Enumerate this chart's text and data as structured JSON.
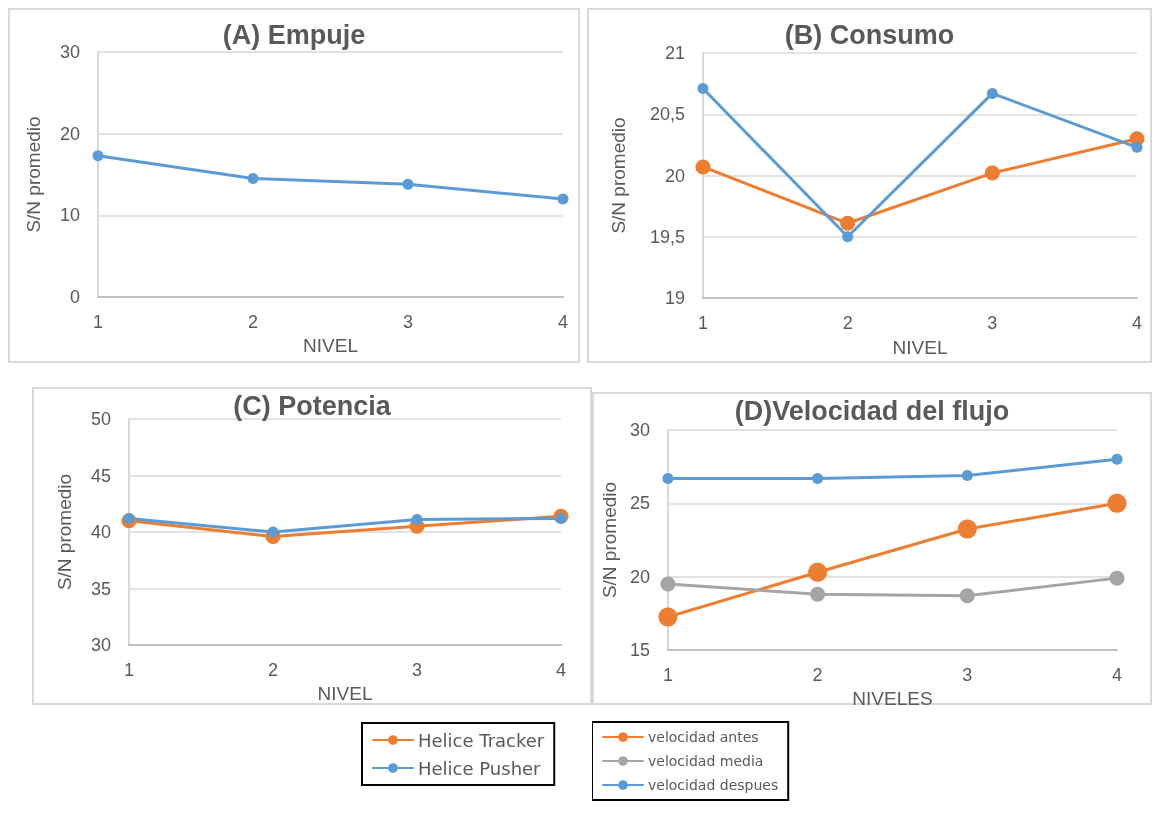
{
  "chart_data": [
    {
      "type": "line",
      "title": "(A) Empuje",
      "xlabel": "NIVEL",
      "ylabel": "S/N promedio",
      "categories": [
        "1",
        "2",
        "3",
        "4"
      ],
      "series": [
        {
          "color": "#5b9bd5",
          "values": [
            17.3,
            14.5,
            13.8,
            12.0
          ]
        }
      ],
      "ylim": [
        0,
        30
      ],
      "yticks": [
        0,
        10,
        20,
        30
      ],
      "grid": "y",
      "marker": "circle",
      "legend": false
    },
    {
      "type": "line",
      "title": "(B) Consumo",
      "xlabel": "NIVEL",
      "ylabel": "S/N promedio",
      "categories": [
        "1",
        "2",
        "3",
        "4"
      ],
      "series": [
        {
          "color": "#ed7d31",
          "values": [
            20.07,
            19.61,
            20.02,
            20.3
          ]
        },
        {
          "color": "#5b9bd5",
          "values": [
            20.71,
            19.5,
            20.67,
            20.23
          ]
        }
      ],
      "ylim": [
        19,
        21
      ],
      "yticks": [
        19,
        {
          "value": 19.5,
          "label": "19,5"
        },
        20,
        {
          "value": 20.5,
          "label": "20,5"
        },
        21
      ],
      "grid": "y",
      "marker": "circle",
      "legend": false
    },
    {
      "type": "line",
      "title": "(C) Potencia",
      "xlabel": "NIVEL",
      "ylabel": "S/N promedio",
      "categories": [
        "1",
        "2",
        "3",
        "4"
      ],
      "series": [
        {
          "name": "Helice Tracker",
          "color": "#ed7d31",
          "values": [
            41.0,
            39.6,
            40.5,
            41.4
          ]
        },
        {
          "name": "Helice Pusher",
          "color": "#5b9bd5",
          "values": [
            41.2,
            40.0,
            41.1,
            41.2
          ]
        }
      ],
      "ylim": [
        30,
        50
      ],
      "yticks": [
        30,
        35,
        40,
        45,
        50
      ],
      "grid": "y",
      "marker": "circle",
      "legend": "bottom"
    },
    {
      "type": "line",
      "title": "(D)Velocidad del flujo",
      "xlabel": "NIVELES",
      "ylabel": "S/N promedio",
      "categories": [
        "1",
        "2",
        "3",
        "4"
      ],
      "series": [
        {
          "name": "velocidad antes",
          "color": "#ed7d31",
          "values": [
            17.25,
            20.3,
            23.25,
            25.0
          ]
        },
        {
          "name": "velocidad media",
          "color": "#a5a5a5",
          "values": [
            19.5,
            18.8,
            18.7,
            19.9
          ]
        },
        {
          "name": "velocidad despues",
          "color": "#5b9bd5",
          "values": [
            26.7,
            26.7,
            26.9,
            28.0
          ]
        }
      ],
      "ylim": [
        15,
        30
      ],
      "yticks": [
        15,
        20,
        25,
        30
      ],
      "grid": "y",
      "marker": "circle",
      "legend": "bottom"
    }
  ]
}
